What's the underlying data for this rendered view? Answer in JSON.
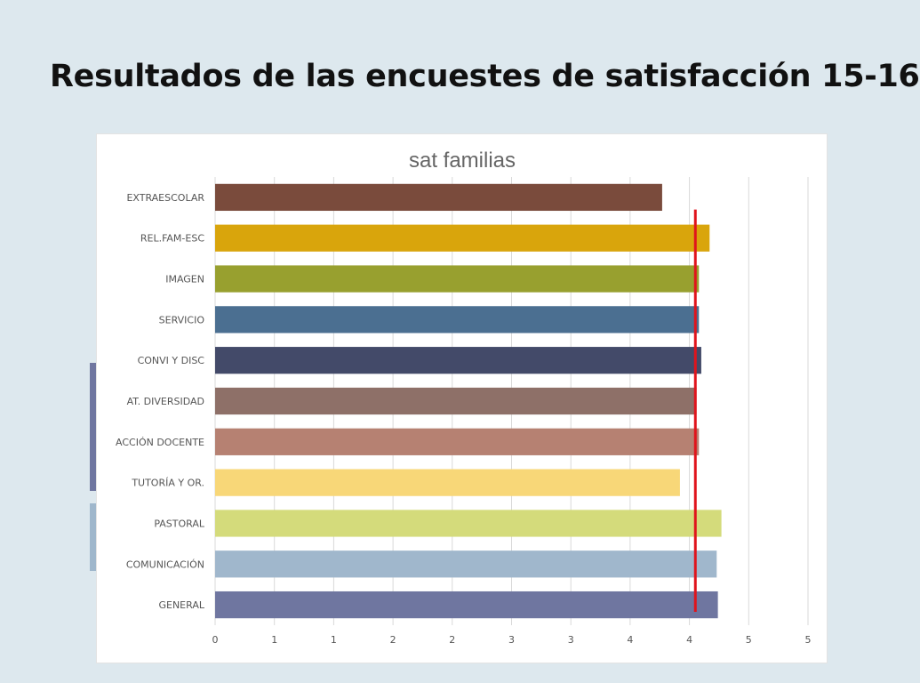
{
  "slide": {
    "title": "Resultados de las encuestes de satisfacción 15-16"
  },
  "chart_data": {
    "type": "bar",
    "orientation": "horizontal",
    "title": "sat familias",
    "xlabel": "",
    "ylabel": "",
    "xlim": [
      0,
      5
    ],
    "grid": true,
    "legend": "none",
    "categories": [
      "EXTRAESCOLAR",
      "REL.FAM-ESC",
      "IMAGEN",
      "SERVICIO",
      "CONVI Y DISC",
      "AT. DIVERSIDAD",
      "ACCIÓN DOCENTE",
      "TUTORÍA Y OR.",
      "PASTORAL",
      "COMUNICACIÓN",
      "GENERAL"
    ],
    "values": [
      3.77,
      4.17,
      4.08,
      4.08,
      4.1,
      4.06,
      4.08,
      3.92,
      4.27,
      4.23,
      4.24
    ],
    "colors": [
      "#7a4b3c",
      "#d9a50c",
      "#98a02f",
      "#4b6f91",
      "#434a69",
      "#8e7068",
      "#b68172",
      "#f8d778",
      "#d4db7b",
      "#a0b7cc",
      "#6f76a0"
    ],
    "x_ticks": [
      0,
      0.5,
      1,
      1.5,
      2,
      2.5,
      3,
      3.5,
      4,
      4.5,
      5
    ],
    "x_tick_labels": [
      "0",
      "1",
      "1",
      "2",
      "2",
      "3",
      "3",
      "4",
      "4",
      "5",
      "5"
    ],
    "reference_line": {
      "value": 4.05,
      "color": "#e0141c"
    }
  }
}
